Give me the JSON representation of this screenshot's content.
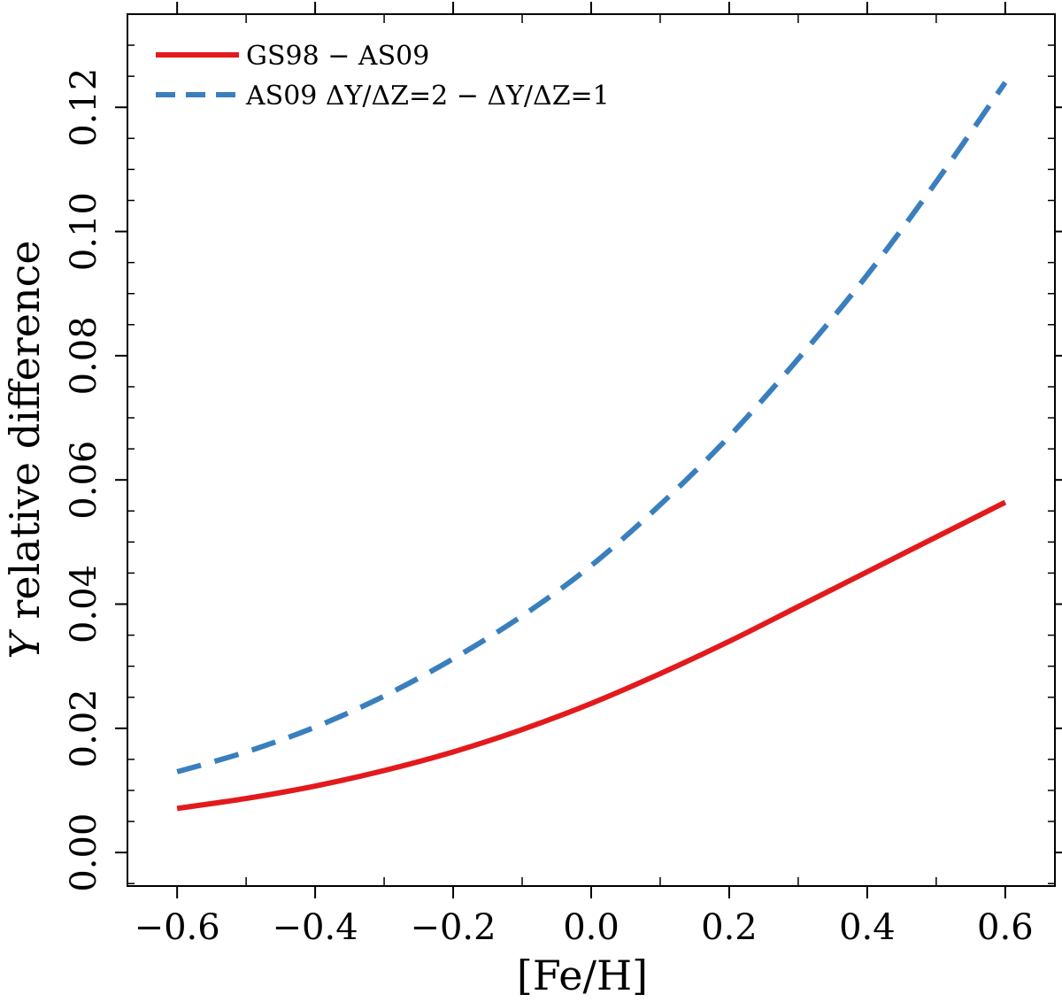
{
  "chart_data": {
    "type": "line",
    "title": "",
    "xlabel": "[Fe/H]",
    "ylabel_italic": "Y",
    "ylabel_rest": " relative difference",
    "xlim": [
      -0.672,
      0.672
    ],
    "ylim": [
      -0.0054,
      0.135
    ],
    "x_ticks": [
      -0.6,
      -0.4,
      -0.2,
      0.0,
      0.2,
      0.4,
      0.6
    ],
    "x_tick_labels": [
      "−0.6",
      "−0.4",
      "−0.2",
      "0.0",
      "0.2",
      "0.4",
      "0.6"
    ],
    "y_ticks": [
      0.0,
      0.02,
      0.04,
      0.06,
      0.08,
      0.1,
      0.12
    ],
    "y_tick_labels": [
      "0.00",
      "0.02",
      "0.04",
      "0.06",
      "0.08",
      "0.10",
      "0.12"
    ],
    "x_minor_step": 0.1,
    "y_minor_step": 0.005,
    "legend_position": "top-left",
    "series": [
      {
        "name": "GS98 − AS09",
        "color": "#e31a1c",
        "style": "solid",
        "x": [
          -0.6,
          -0.5,
          -0.4,
          -0.3,
          -0.2,
          -0.1,
          0.0,
          0.1,
          0.2,
          0.3,
          0.4,
          0.5,
          0.6
        ],
        "y": [
          0.0071,
          0.0087,
          0.0107,
          0.0132,
          0.0162,
          0.0198,
          0.024,
          0.0288,
          0.034,
          0.0396,
          0.0452,
          0.0508,
          0.0564
        ]
      },
      {
        "name": "AS09  ΔY/ΔZ=2 −  ΔY/ΔZ=1",
        "color": "#3a7fbd",
        "style": "dashed",
        "x": [
          -0.6,
          -0.5,
          -0.4,
          -0.3,
          -0.2,
          -0.1,
          0.0,
          0.1,
          0.2,
          0.3,
          0.4,
          0.5,
          0.6
        ],
        "y": [
          0.013,
          0.0162,
          0.0202,
          0.0252,
          0.0312,
          0.0381,
          0.0462,
          0.056,
          0.067,
          0.0795,
          0.093,
          0.108,
          0.124
        ]
      }
    ]
  }
}
